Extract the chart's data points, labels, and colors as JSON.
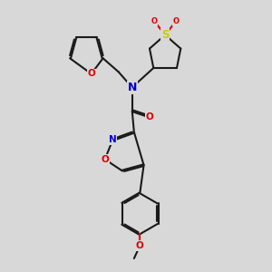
{
  "bg": "#d8d8d8",
  "bond_color": "#1a1a1a",
  "lw": 1.5,
  "atom_colors": {
    "N": "#0000cc",
    "O": "#dd0000",
    "S": "#cccc00",
    "C": "#1a1a1a"
  },
  "fs": 7.5,
  "xlim": [
    0,
    10
  ],
  "ylim": [
    0,
    14
  ]
}
